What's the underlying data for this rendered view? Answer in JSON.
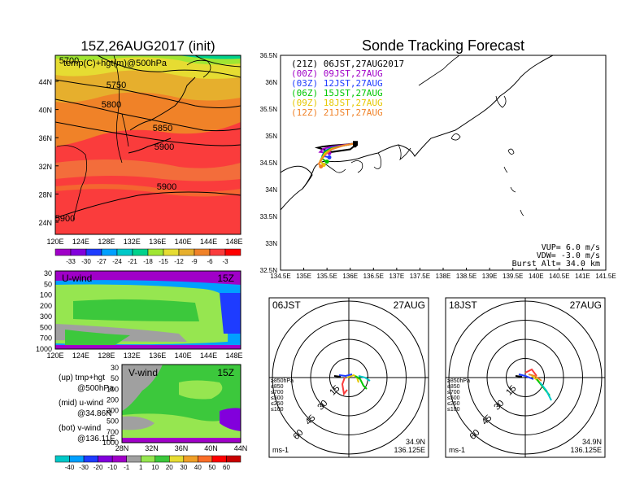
{
  "left_map": {
    "title": "15Z,26AUG2017 (init)",
    "overlay_label": "temp(C)+hgt(m)@500hPa",
    "lat_ticks": [
      "44N",
      "40N",
      "36N",
      "32N",
      "28N",
      "24N"
    ],
    "lon_ticks": [
      "120E",
      "124E",
      "128E",
      "132E",
      "136E",
      "140E",
      "144E",
      "148E"
    ],
    "contour_labels": [
      "5750",
      "5800",
      "5850",
      "5900",
      "5900",
      "5900",
      "5700"
    ],
    "colorbar": {
      "labels": [
        "-33",
        "-30",
        "-27",
        "-24",
        "-21",
        "-18",
        "-15",
        "-12",
        "-9",
        "-6",
        "-3"
      ],
      "colors": [
        "#a000c8",
        "#8200dc",
        "#1e3cff",
        "#00a0ff",
        "#00c8c8",
        "#00d28c",
        "#a0e632",
        "#e6dc32",
        "#e6af2d",
        "#f08228",
        "#fa3c3c",
        "#ff0000"
      ]
    }
  },
  "u_panel": {
    "title": "U-wind",
    "time": "15Z",
    "y_ticks": [
      "30",
      "50",
      "100",
      "200",
      "300",
      "500",
      "700",
      "1000"
    ],
    "x_ticks": [
      "120E",
      "124E",
      "128E",
      "132E",
      "136E",
      "140E",
      "144E",
      "148E"
    ]
  },
  "v_panel": {
    "title": "V-wind",
    "time": "15Z",
    "y_ticks": [
      "30",
      "50",
      "100",
      "200",
      "300",
      "500",
      "700",
      "1000"
    ],
    "x_ticks": [
      "28N",
      "32N",
      "36N",
      "40N",
      "44N"
    ]
  },
  "legend_notes": [
    {
      "line1": "(up) tmp+hgt",
      "line2": "@500hPa"
    },
    {
      "line1": "(mid) u-wind",
      "line2": "@34.86N"
    },
    {
      "line1": "(bot) v-wind",
      "line2": "@136.11E"
    }
  ],
  "wind_colorbar": {
    "labels": [
      "-40",
      "-30",
      "-20",
      "-10",
      "-1",
      "1",
      "10",
      "20",
      "30",
      "40",
      "50",
      "60"
    ],
    "colors": [
      "#00c8c8",
      "#00a0ff",
      "#1e3cff",
      "#8200dc",
      "#a000c8",
      "#a0a0a0",
      "#96e650",
      "#3cc83c",
      "#e6dc32",
      "#f0a028",
      "#fa6e28",
      "#ff0000",
      "#c80000"
    ]
  },
  "main": {
    "title": "Sonde Tracking Forecast",
    "legend": [
      {
        "label": "(21Z)  06JST,27AUG2017",
        "color": "#000000"
      },
      {
        "label": "(00Z)  09JST,27AUG",
        "color": "#a000c8"
      },
      {
        "label": "(03Z)  12JST,27AUG",
        "color": "#1e3cff"
      },
      {
        "label": "(06Z)  15JST,27AUG",
        "color": "#00c800"
      },
      {
        "label": "(09Z)  18JST,27AUG",
        "color": "#e6c800"
      },
      {
        "label": "(12Z)  21JST,27AUG",
        "color": "#f08228"
      }
    ],
    "y_ticks": [
      "36.5N",
      "36N",
      "35.5N",
      "35N",
      "34.5N",
      "34N",
      "33.5N",
      "33N",
      "32.5N"
    ],
    "x_ticks": [
      "134.5E",
      "135E",
      "135.5E",
      "136E",
      "136.5E",
      "137E",
      "137.5E",
      "138E",
      "138.5E",
      "139E",
      "139.5E",
      "140E",
      "140.5E",
      "141E",
      "141.5E"
    ],
    "info": [
      "VUP=  6.0  m/s",
      "VDW= -3.0  m/s",
      "Burst Alt=  34.0  km"
    ]
  },
  "chart_data": [
    {
      "type": "line",
      "title": "Sonde Tracking Forecast",
      "xlim": [
        134.5,
        141.5
      ],
      "ylim": [
        32.5,
        36.5
      ],
      "series": [
        {
          "name": "(21Z) 06JST,27AUG2017",
          "color": "#000000",
          "x": [
            136.11,
            135.9,
            135.6,
            135.4,
            135.3,
            135.6,
            136.0,
            136.1
          ],
          "y": [
            34.86,
            34.84,
            34.82,
            34.8,
            34.78,
            34.7,
            34.75,
            34.82
          ]
        },
        {
          "name": "(00Z) 09JST,27AUG",
          "color": "#a000c8",
          "x": [
            136.11,
            135.85,
            135.6,
            135.42,
            135.35,
            135.55
          ],
          "y": [
            34.86,
            34.83,
            34.8,
            34.76,
            34.7,
            34.68
          ]
        },
        {
          "name": "(03Z) 12JST,27AUG",
          "color": "#1e3cff",
          "x": [
            136.11,
            135.85,
            135.6,
            135.45,
            135.4,
            135.55
          ],
          "y": [
            34.86,
            34.82,
            34.78,
            34.72,
            34.63,
            34.6
          ]
        },
        {
          "name": "(06Z) 15JST,27AUG",
          "color": "#00c800",
          "x": [
            136.11,
            135.85,
            135.6,
            135.45,
            135.38,
            135.5
          ],
          "y": [
            34.86,
            34.82,
            34.77,
            34.7,
            34.58,
            34.52
          ]
        },
        {
          "name": "(09Z) 18JST,27AUG",
          "color": "#e6c800",
          "x": [
            136.11,
            135.85,
            135.6,
            135.45,
            135.35,
            135.43
          ],
          "y": [
            34.86,
            34.82,
            34.76,
            34.67,
            34.53,
            34.46
          ]
        },
        {
          "name": "(12Z) 21JST,27AUG",
          "color": "#f08228",
          "x": [
            136.11,
            135.85,
            135.6,
            135.45,
            135.32,
            135.37
          ],
          "y": [
            34.86,
            34.82,
            34.75,
            34.64,
            34.48,
            34.43
          ]
        }
      ],
      "xlabel": "",
      "ylabel": ""
    }
  ],
  "polar_left": {
    "time": "06JST",
    "date": "27AUG",
    "rings": [
      "15",
      "30",
      "45",
      "60"
    ],
    "pressure_legend": [
      {
        "label": "≥850hPa",
        "color": "#fa3c3c"
      },
      {
        "label": "≤850",
        "color": "#f08228"
      },
      {
        "label": "≤700",
        "color": "#e6c800"
      },
      {
        "label": "≤500",
        "color": "#00c800"
      },
      {
        "label": "≤250",
        "color": "#00c8c8"
      },
      {
        "label": "≤100",
        "color": "#1e3cff"
      }
    ],
    "unit": "ms-1",
    "lat": "34.9N",
    "lon": "136.125E"
  },
  "polar_right": {
    "time": "18JST",
    "date": "27AUG",
    "rings": [
      "15",
      "30",
      "45",
      "60"
    ],
    "pressure_legend": [
      {
        "label": "≥850hPa",
        "color": "#fa3c3c"
      },
      {
        "label": "≤850",
        "color": "#f08228"
      },
      {
        "label": "≤700",
        "color": "#e6c800"
      },
      {
        "label": "≤500",
        "color": "#00c800"
      },
      {
        "label": "≤250",
        "color": "#00c8c8"
      },
      {
        "label": "≤100",
        "color": "#1e3cff"
      }
    ],
    "unit": "ms-1",
    "lat": "34.9N",
    "lon": "136.125E"
  }
}
